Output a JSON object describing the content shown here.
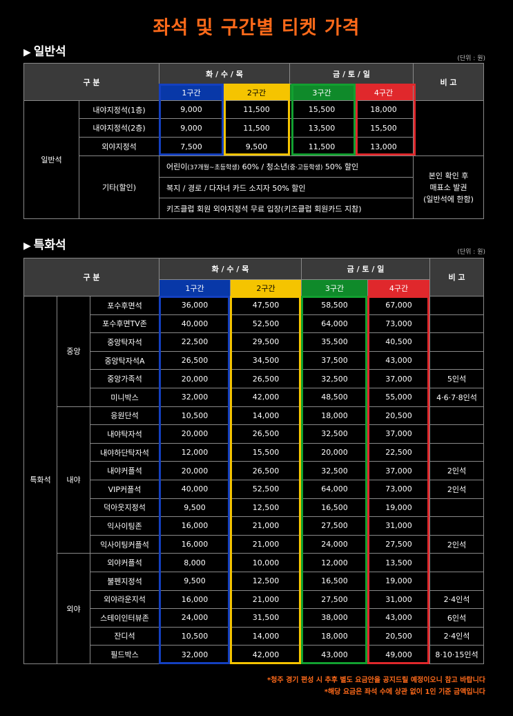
{
  "title": "좌석 및 구간별 티켓 가격",
  "unit": "(단위 : 원)",
  "general": {
    "heading": "일반석",
    "hdr_gubun": "구 분",
    "hdr_wk": "화 / 수 / 목",
    "hdr_we": "금 / 토 / 일",
    "hdr_note": "비 고",
    "zones": [
      "1구간",
      "2구간",
      "3구간",
      "4구간"
    ],
    "group": "일반석",
    "rows": [
      {
        "name": "내야지정석(1층)",
        "p": [
          "9,000",
          "11,500",
          "15,500",
          "18,000"
        ]
      },
      {
        "name": "내야지정석(2층)",
        "p": [
          "9,000",
          "11,500",
          "13,500",
          "15,500"
        ]
      },
      {
        "name": "외야지정석",
        "p": [
          "7,500",
          "9,500",
          "11,500",
          "13,000"
        ]
      }
    ],
    "etc_name": "기타(할인)",
    "etc_lines": [
      {
        "pre": "어린이",
        "small": "(37개월~초등학생)",
        "mid": " 60% / 청소년",
        "small2": "(중·고등학생)",
        "post": " 50% 할인"
      },
      {
        "pre": "복지 / 경로 / 다자녀 카드 소지자 50% 할인",
        "small": "",
        "mid": "",
        "small2": "",
        "post": ""
      },
      {
        "pre": "키즈클럽 회원 외야지정석 무료 입장(키즈클럽 회원카드 지참)",
        "small": "",
        "mid": "",
        "small2": "",
        "post": ""
      }
    ],
    "etc_note": [
      "본인 확인 후",
      "매표소 발권",
      "(일반석에 한함)"
    ]
  },
  "special": {
    "heading": "특화석",
    "group": "특화석",
    "sections": [
      {
        "name": "중앙",
        "rows": [
          {
            "name": "포수후면석",
            "p": [
              "36,000",
              "47,500",
              "58,500",
              "67,000"
            ],
            "note": ""
          },
          {
            "name": "포수후면TV존",
            "p": [
              "40,000",
              "52,500",
              "64,000",
              "73,000"
            ],
            "note": ""
          },
          {
            "name": "중앙탁자석",
            "p": [
              "22,500",
              "29,500",
              "35,500",
              "40,500"
            ],
            "note": ""
          },
          {
            "name": "중앙탁자석A",
            "p": [
              "26,500",
              "34,500",
              "37,500",
              "43,000"
            ],
            "note": ""
          },
          {
            "name": "중앙가족석",
            "p": [
              "20,000",
              "26,500",
              "32,500",
              "37,000"
            ],
            "note": "5인석"
          },
          {
            "name": "미니박스",
            "p": [
              "32,000",
              "42,000",
              "48,500",
              "55,000"
            ],
            "note": "4·6·7·8인석"
          }
        ]
      },
      {
        "name": "내야",
        "rows": [
          {
            "name": "응원단석",
            "p": [
              "10,500",
              "14,000",
              "18,000",
              "20,500"
            ],
            "note": ""
          },
          {
            "name": "내야탁자석",
            "p": [
              "20,000",
              "26,500",
              "32,500",
              "37,000"
            ],
            "note": ""
          },
          {
            "name": "내야하단탁자석",
            "p": [
              "12,000",
              "15,500",
              "20,000",
              "22,500"
            ],
            "note": ""
          },
          {
            "name": "내야커플석",
            "p": [
              "20,000",
              "26,500",
              "32,500",
              "37,000"
            ],
            "note": "2인석"
          },
          {
            "name": "VIP커플석",
            "p": [
              "40,000",
              "52,500",
              "64,000",
              "73,000"
            ],
            "note": "2인석"
          },
          {
            "name": "덕아웃지정석",
            "p": [
              "9,500",
              "12,500",
              "16,500",
              "19,000"
            ],
            "note": ""
          },
          {
            "name": "익사이팅존",
            "p": [
              "16,000",
              "21,000",
              "27,500",
              "31,000"
            ],
            "note": ""
          },
          {
            "name": "익사이팅커플석",
            "p": [
              "16,000",
              "21,000",
              "24,000",
              "27,500"
            ],
            "note": "2인석"
          }
        ]
      },
      {
        "name": "외야",
        "rows": [
          {
            "name": "외야커플석",
            "p": [
              "8,000",
              "10,000",
              "12,000",
              "13,500"
            ],
            "note": ""
          },
          {
            "name": "불펜지정석",
            "p": [
              "9,500",
              "12,500",
              "16,500",
              "19,000"
            ],
            "note": ""
          },
          {
            "name": "외야라운지석",
            "p": [
              "16,000",
              "21,000",
              "27,500",
              "31,000"
            ],
            "note": "2·4인석"
          },
          {
            "name": "스테이인터뷰존",
            "p": [
              "24,000",
              "31,500",
              "38,000",
              "43,000"
            ],
            "note": "6인석"
          },
          {
            "name": "잔디석",
            "p": [
              "10,500",
              "14,000",
              "18,000",
              "20,500"
            ],
            "note": "2·4인석"
          },
          {
            "name": "필드박스",
            "p": [
              "32,000",
              "42,000",
              "43,000",
              "49,000"
            ],
            "note": "8·10·15인석"
          }
        ]
      }
    ]
  },
  "notes": [
    "*청주 경기 편성 시 추후 별도 요금안을 공지드릴 예정이오니 참고 바랍니다",
    "*해당 요금은 좌석 수에 상관 없이 1인 기준 금액입니다"
  ],
  "colors": {
    "title": "#ff6a1a",
    "zone1": "#1440c0",
    "zone2": "#f5c400",
    "zone3": "#12a030",
    "zone4": "#e0282c"
  }
}
